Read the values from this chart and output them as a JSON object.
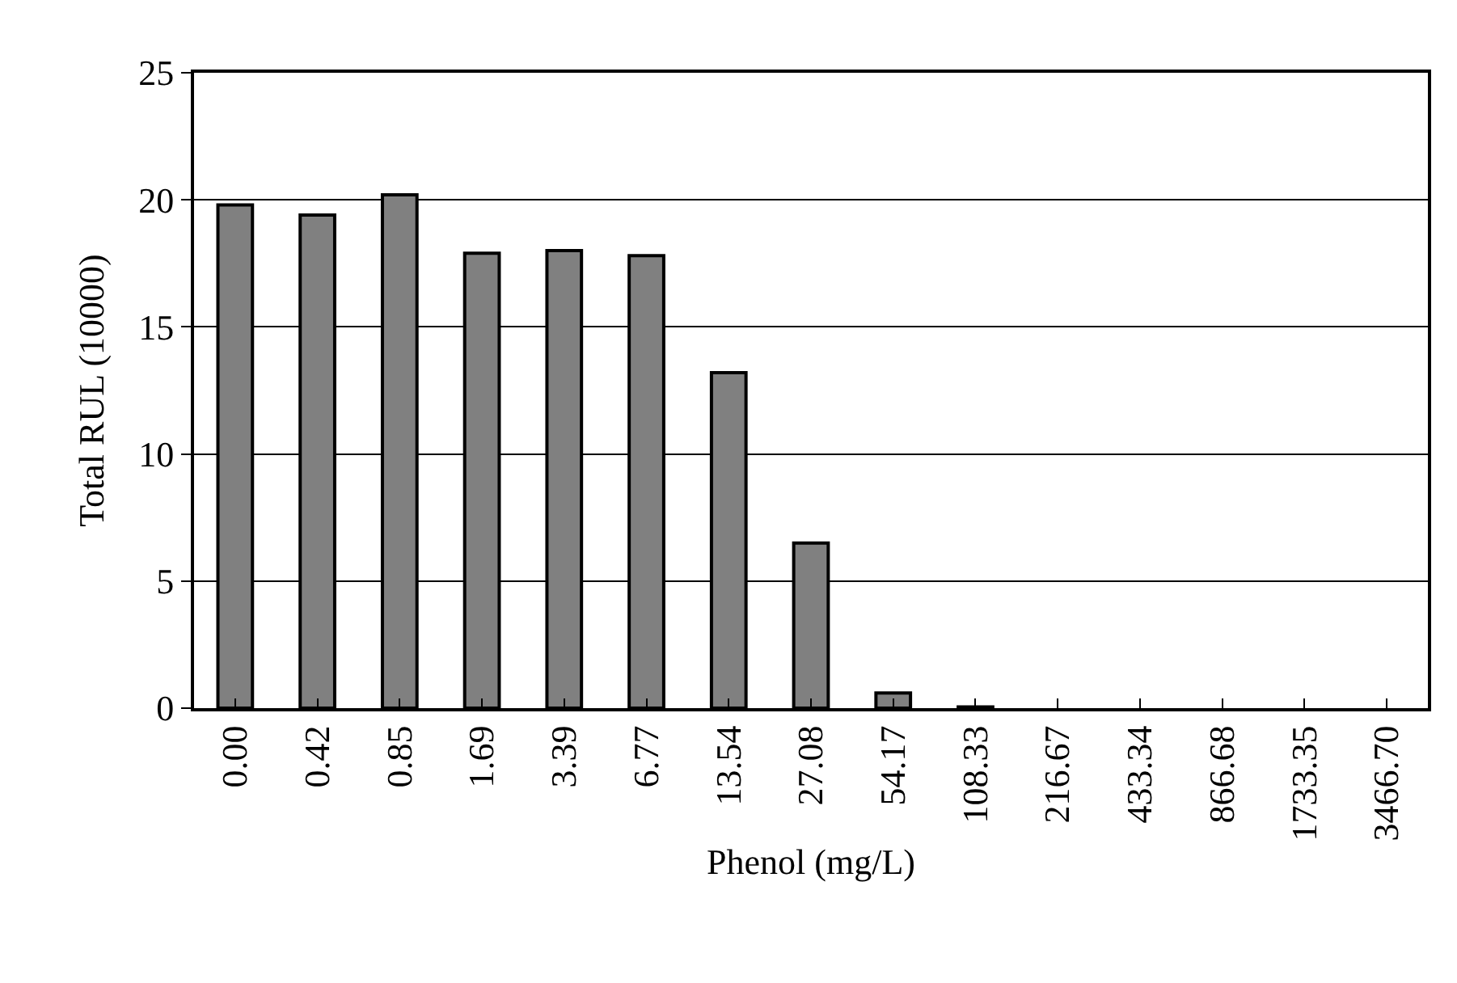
{
  "chart_data": {
    "type": "bar",
    "xlabel": "Phenol (mg/L)",
    "ylabel": "Total RUL (10000)",
    "categories": [
      "0.00",
      "0.42",
      "0.85",
      "1.69",
      "3.39",
      "6.77",
      "13.54",
      "27.08",
      "54.17",
      "108.33",
      "216.67",
      "433.34",
      "866.68",
      "1733.35",
      "3466.70"
    ],
    "values": [
      19.8,
      19.4,
      20.2,
      17.9,
      18.0,
      17.8,
      13.2,
      6.5,
      0.6,
      0.05,
      0,
      0,
      0,
      0,
      0
    ],
    "color": "#808080",
    "ylim": [
      0,
      25
    ],
    "yticks": [
      0,
      5,
      10,
      15,
      20,
      25
    ],
    "grid": "y",
    "legend": false
  }
}
